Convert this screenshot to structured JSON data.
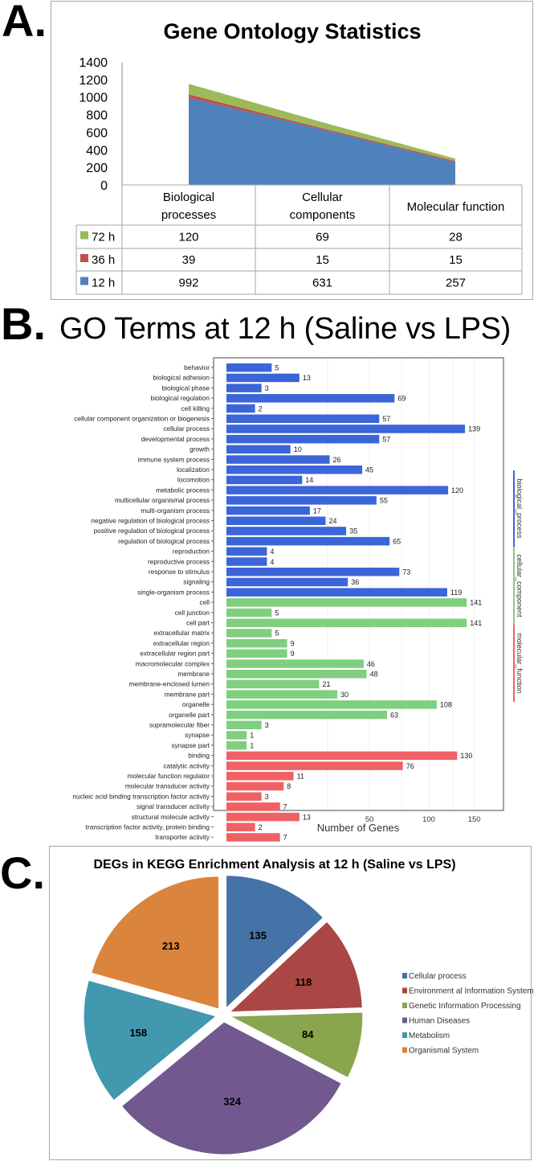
{
  "panels": {
    "a": "A.",
    "b": "B.",
    "c": "C."
  },
  "chart_data": [
    {
      "type": "area",
      "stacked": true,
      "title": "Gene Ontology Statistics",
      "categories": [
        "Biological processes",
        "Cellular components",
        "Molecular function"
      ],
      "category_lines": [
        [
          "Biological",
          "processes"
        ],
        [
          "Cellular",
          "components"
        ],
        [
          "Molecular function"
        ]
      ],
      "series": [
        {
          "name": "72 h",
          "values": [
            120,
            69,
            28
          ],
          "color": "#9bbb59"
        },
        {
          "name": "36 h",
          "values": [
            39,
            15,
            15
          ],
          "color": "#c0504d"
        },
        {
          "name": "12 h",
          "values": [
            992,
            631,
            257
          ],
          "color": "#4f81bd"
        }
      ],
      "ylim": [
        0,
        1400
      ],
      "yticks": [
        0,
        200,
        400,
        600,
        800,
        1000,
        1200,
        1400
      ],
      "data_table": true
    },
    {
      "type": "bar",
      "orientation": "horizontal",
      "title": "GO Terms at 12 h (Saline vs LPS)",
      "xlabel": "Number of Genes",
      "xscale": "sqrt",
      "xticks": [
        50,
        100,
        150
      ],
      "grid": true,
      "groups": [
        {
          "name": "biological_process",
          "color": "#3b65d9"
        },
        {
          "name": "cellular_component",
          "color": "#7fcf7f"
        },
        {
          "name": "molecular_function",
          "color": "#f06166"
        }
      ],
      "bars": [
        {
          "label": "behavior",
          "value": 5,
          "group": 0
        },
        {
          "label": "biological adhesion",
          "value": 13,
          "group": 0
        },
        {
          "label": "biological phase",
          "value": 3,
          "group": 0
        },
        {
          "label": "biological regulation",
          "value": 69,
          "group": 0
        },
        {
          "label": "cell killing",
          "value": 2,
          "group": 0
        },
        {
          "label": "cellular component organization or biogenesis",
          "value": 57,
          "group": 0
        },
        {
          "label": "cellular process",
          "value": 139,
          "group": 0
        },
        {
          "label": "developmental process",
          "value": 57,
          "group": 0
        },
        {
          "label": "growth",
          "value": 10,
          "group": 0
        },
        {
          "label": "immune system process",
          "value": 26,
          "group": 0
        },
        {
          "label": "localization",
          "value": 45,
          "group": 0
        },
        {
          "label": "locomotion",
          "value": 14,
          "group": 0
        },
        {
          "label": "metabolic process",
          "value": 120,
          "group": 0
        },
        {
          "label": "multicellular organismal process",
          "value": 55,
          "group": 0
        },
        {
          "label": "multi-organism process",
          "value": 17,
          "group": 0
        },
        {
          "label": "negative regulation of biological process",
          "value": 24,
          "group": 0
        },
        {
          "label": "positive regulation of biological process",
          "value": 35,
          "group": 0
        },
        {
          "label": "regulation of biological process",
          "value": 65,
          "group": 0
        },
        {
          "label": "reproduction",
          "value": 4,
          "group": 0
        },
        {
          "label": "reproductive process",
          "value": 4,
          "group": 0
        },
        {
          "label": "response to stimulus",
          "value": 73,
          "group": 0
        },
        {
          "label": "signaling",
          "value": 36,
          "group": 0
        },
        {
          "label": "single-organism process",
          "value": 119,
          "group": 0
        },
        {
          "label": "cell",
          "value": 141,
          "group": 1
        },
        {
          "label": "cell junction",
          "value": 5,
          "group": 1
        },
        {
          "label": "cell part",
          "value": 141,
          "group": 1
        },
        {
          "label": "extracellular matrix",
          "value": 5,
          "group": 1
        },
        {
          "label": "extracellular region",
          "value": 9,
          "group": 1
        },
        {
          "label": "extracellular region part",
          "value": 9,
          "group": 1
        },
        {
          "label": "macromolecular complex",
          "value": 46,
          "group": 1
        },
        {
          "label": "membrane",
          "value": 48,
          "group": 1
        },
        {
          "label": "membrane-enclosed lumen",
          "value": 21,
          "group": 1
        },
        {
          "label": "membrane part",
          "value": 30,
          "group": 1
        },
        {
          "label": "organelle",
          "value": 108,
          "group": 1
        },
        {
          "label": "organelle part",
          "value": 63,
          "group": 1
        },
        {
          "label": "supramolecular fiber",
          "value": 3,
          "group": 1
        },
        {
          "label": "synapse",
          "value": 1,
          "group": 1
        },
        {
          "label": "synapse part",
          "value": 1,
          "group": 1
        },
        {
          "label": "binding",
          "value": 130,
          "group": 2
        },
        {
          "label": "catalytic activity",
          "value": 76,
          "group": 2
        },
        {
          "label": "molecular function regulator",
          "value": 11,
          "group": 2
        },
        {
          "label": "molecular transducer activity",
          "value": 8,
          "group": 2
        },
        {
          "label": "nucleic acid binding transcription factor activity",
          "value": 3,
          "group": 2
        },
        {
          "label": "signal transducer activity",
          "value": 7,
          "group": 2
        },
        {
          "label": "structural molecule activity",
          "value": 13,
          "group": 2
        },
        {
          "label": "transcription factor activity, protein binding",
          "value": 2,
          "group": 2
        },
        {
          "label": "transporter activity",
          "value": 7,
          "group": 2
        }
      ]
    },
    {
      "type": "pie",
      "exploded": true,
      "title": "DEGs in KEGG Enrichment Analysis at 12 h (Saline vs LPS)",
      "legend_position": "right",
      "slices": [
        {
          "name": "Cellular process",
          "value": 135,
          "color": "#4572a7"
        },
        {
          "name": "Environment al Information System",
          "value": 118,
          "color": "#aa4643"
        },
        {
          "name": "Genetic Information Processing",
          "value": 84,
          "color": "#89a54e"
        },
        {
          "name": "Human Diseases",
          "value": 324,
          "color": "#71588f"
        },
        {
          "name": "Metabolism",
          "value": 158,
          "color": "#4198af"
        },
        {
          "name": "Organismal System",
          "value": 213,
          "color": "#db843d"
        }
      ]
    }
  ]
}
